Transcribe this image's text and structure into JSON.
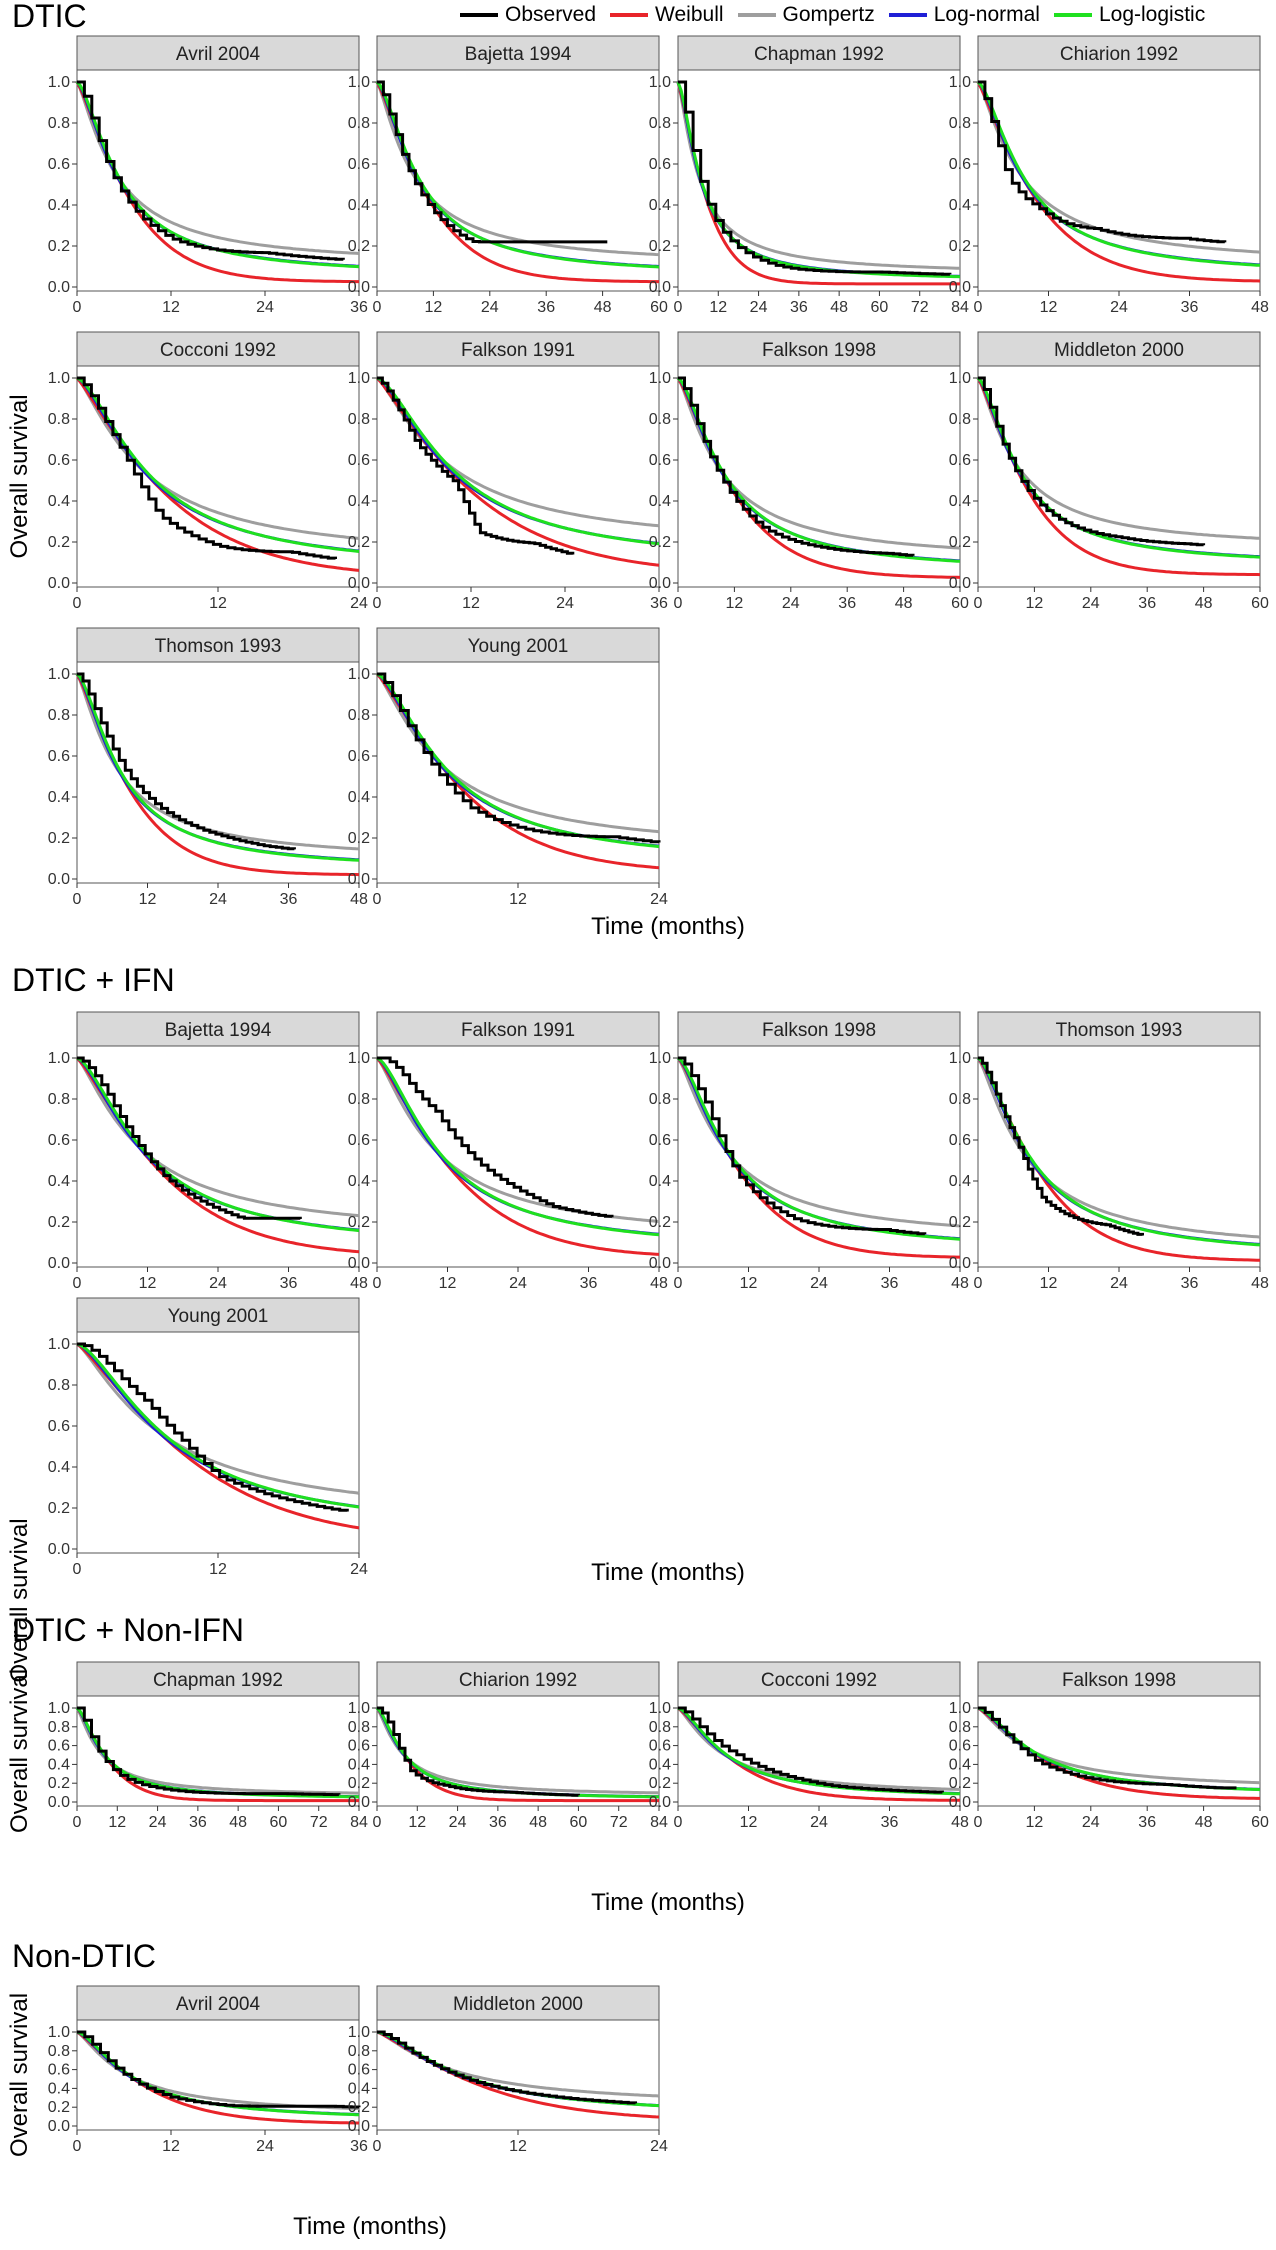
{
  "legend": [
    {
      "key": "observed",
      "label": "Observed",
      "color": "#000000"
    },
    {
      "key": "weibull",
      "label": "Weibull",
      "color": "#e8242a"
    },
    {
      "key": "gompertz",
      "label": "Gompertz",
      "color": "#9e9e9e"
    },
    {
      "key": "lognormal",
      "label": "Log-normal",
      "color": "#1f1fd6"
    },
    {
      "key": "loglogistic",
      "label": "Log-logistic",
      "color": "#1fe01f"
    }
  ],
  "labels": {
    "y": "Overall survival",
    "x": "Time (months)"
  },
  "chart_data": [
    {
      "section": "DTIC",
      "type": "line",
      "panels": [
        {
          "title": "Avril 2004",
          "xmax": 36,
          "xticks": [
            0,
            12,
            24,
            36
          ],
          "median": 5.5,
          "tail": 0.05,
          "dev": [
            [
              4,
              -0.05
            ],
            [
              12,
              -0.03
            ],
            [
              24,
              0.03
            ],
            [
              31,
              0.03
            ]
          ],
          "weib": 1.2,
          "gomp": 0.9,
          "obsEnd": 34,
          "obsFloor": 0.05
        },
        {
          "title": "Bajetta 1994",
          "xmax": 60,
          "xticks": [
            0,
            12,
            24,
            36,
            48,
            60
          ],
          "median": 9,
          "tail": 0.05,
          "dev": [
            [
              6,
              -0.06
            ],
            [
              20,
              -0.04
            ],
            [
              30,
              0.05
            ],
            [
              40,
              0.07
            ]
          ],
          "weib": 1.2,
          "gomp": 0.85,
          "obsEnd": 49,
          "obsFloor": 0.22
        },
        {
          "title": "Chapman 1992",
          "xmax": 84,
          "xticks": [
            0,
            12,
            24,
            36,
            48,
            60,
            72,
            84
          ],
          "median": 7,
          "tail": 0.03,
          "dev": [
            [
              10,
              -0.02
            ],
            [
              30,
              -0.02
            ],
            [
              60,
              0.01
            ]
          ],
          "weib": 1.2,
          "gomp": 0.9,
          "obsEnd": 81,
          "obsFloor": 0.03
        },
        {
          "title": "Chiarion 1992",
          "xmax": 48,
          "xticks": [
            0,
            12,
            24,
            36,
            48
          ],
          "median": 8,
          "tail": 0.05,
          "dev": [
            [
              5,
              -0.15
            ],
            [
              10,
              -0.05
            ],
            [
              20,
              0.05
            ],
            [
              35,
              0.1
            ]
          ],
          "weib": 1.15,
          "gomp": 0.9,
          "obsEnd": 42,
          "obsFloor": 0.12
        },
        {
          "title": "Cocconi 1992",
          "xmax": 24,
          "xticks": [
            0,
            12,
            24
          ],
          "median": 6.2,
          "tail": 0.05,
          "dev": [
            [
              4,
              -0.05
            ],
            [
              7,
              -0.15
            ],
            [
              12,
              -0.12
            ],
            [
              18,
              -0.05
            ]
          ],
          "weib": 1.15,
          "gomp": 0.9,
          "obsEnd": 22,
          "obsFloor": 0.04
        },
        {
          "title": "Falkson 1991",
          "xmax": 36,
          "xticks": [
            0,
            12,
            24,
            36
          ],
          "median": 10,
          "tail": 0.08,
          "dev": [
            [
              5,
              -0.08
            ],
            [
              10,
              -0.05
            ],
            [
              13,
              -0.2
            ],
            [
              20,
              -0.12
            ]
          ],
          "weib": 1.15,
          "gomp": 0.9,
          "obsEnd": 25,
          "obsFloor": 0.13
        },
        {
          "title": "Falkson 1998",
          "xmax": 60,
          "xticks": [
            0,
            12,
            24,
            36,
            48,
            60
          ],
          "median": 10,
          "tail": 0.05,
          "dev": [
            [
              6,
              -0.04
            ],
            [
              18,
              -0.05
            ],
            [
              30,
              -0.02
            ],
            [
              45,
              0.01
            ]
          ],
          "weib": 1.2,
          "gomp": 0.9,
          "obsEnd": 50,
          "obsFloor": 0.1
        },
        {
          "title": "Middleton 2000",
          "xmax": 60,
          "xticks": [
            0,
            12,
            24,
            36,
            48,
            60
          ],
          "median": 9,
          "tail": 0.08,
          "dev": [
            [
              5,
              -0.04
            ],
            [
              15,
              -0.02
            ],
            [
              30,
              0.02
            ],
            [
              45,
              0.04
            ]
          ],
          "weib": 1.2,
          "gomp": 0.9,
          "obsEnd": 48,
          "obsFloor": 0.16
        },
        {
          "title": "Thomson 1993",
          "xmax": 48,
          "xticks": [
            0,
            12,
            24,
            36,
            48
          ],
          "median": 7.5,
          "tail": 0.04,
          "dev": [
            [
              5,
              0.04
            ],
            [
              12,
              0.05
            ],
            [
              24,
              0.04
            ],
            [
              32,
              0.03
            ]
          ],
          "weib": 1.2,
          "gomp": 0.9,
          "obsEnd": 37,
          "obsFloor": 0.07
        },
        {
          "title": "Young 2001",
          "xmax": 24,
          "xticks": [
            0,
            12,
            24
          ],
          "median": 6,
          "tail": 0.06,
          "dev": [
            [
              3,
              -0.05
            ],
            [
              8,
              -0.08
            ],
            [
              14,
              -0.03
            ],
            [
              20,
              0.02
            ]
          ],
          "weib": 1.2,
          "gomp": 0.9,
          "obsEnd": 24,
          "obsFloor": 0.09
        }
      ]
    },
    {
      "section": "DTIC + IFN",
      "type": "line",
      "panels": [
        {
          "title": "Bajetta 1994",
          "xmax": 48,
          "xticks": [
            0,
            12,
            24,
            36,
            48
          ],
          "median": 12,
          "tail": 0.06,
          "dev": [
            [
              5,
              0.03
            ],
            [
              15,
              -0.03
            ],
            [
              28,
              -0.04
            ],
            [
              36,
              0.02
            ]
          ],
          "weib": 1.2,
          "gomp": 0.9,
          "obsEnd": 38,
          "obsFloor": 0.17
        },
        {
          "title": "Falkson 1991",
          "xmax": 48,
          "xticks": [
            0,
            12,
            24,
            36,
            48
          ],
          "median": 11,
          "tail": 0.05,
          "dev": [
            [
              4,
              0.1
            ],
            [
              10,
              0.18
            ],
            [
              18,
              0.12
            ],
            [
              30,
              0.06
            ]
          ],
          "weib": 1.2,
          "gomp": 0.9,
          "obsEnd": 40,
          "obsFloor": 0.13
        },
        {
          "title": "Falkson 1998",
          "xmax": 48,
          "xticks": [
            0,
            12,
            24,
            36,
            48
          ],
          "median": 9,
          "tail": 0.05,
          "dev": [
            [
              5,
              0.04
            ],
            [
              10,
              -0.05
            ],
            [
              20,
              -0.05
            ],
            [
              35,
              0.01
            ]
          ],
          "weib": 1.25,
          "gomp": 0.9,
          "obsEnd": 42,
          "obsFloor": 0.1
        },
        {
          "title": "Thomson 1993",
          "xmax": 48,
          "xticks": [
            0,
            12,
            24,
            36,
            48
          ],
          "median": 9,
          "tail": 0.02,
          "dev": [
            [
              7,
              -0.04
            ],
            [
              11,
              -0.12
            ],
            [
              16,
              -0.08
            ],
            [
              22,
              -0.03
            ]
          ],
          "weib": 1.25,
          "gomp": 0.9,
          "obsEnd": 28,
          "obsFloor": 0.04
        },
        {
          "title": "Young 2001",
          "xmax": 24,
          "xticks": [
            0,
            12,
            24
          ],
          "median": 8,
          "tail": 0.06,
          "dev": [
            [
              3,
              0.05
            ],
            [
              6,
              0.08
            ],
            [
              9,
              0.04
            ],
            [
              12,
              -0.03
            ]
          ],
          "weib": 1.2,
          "gomp": 0.9,
          "obsEnd": 23,
          "obsFloor": 0.1
        }
      ]
    },
    {
      "section": "DTIC + Non-IFN",
      "type": "line",
      "panels": [
        {
          "title": "Chapman 1992",
          "xmax": 84,
          "xticks": [
            0,
            12,
            24,
            36,
            48,
            60,
            72,
            84
          ],
          "median": 8,
          "tail": 0.03,
          "dev": [
            [
              6,
              -0.05
            ],
            [
              12,
              -0.06
            ],
            [
              24,
              -0.03
            ],
            [
              60,
              0.02
            ]
          ],
          "weib": 1.25,
          "gomp": 0.85,
          "obsEnd": 78,
          "obsFloor": 0.05
        },
        {
          "title": "Chiarion 1992",
          "xmax": 84,
          "xticks": [
            0,
            12,
            24,
            36,
            48,
            60,
            72,
            84
          ],
          "median": 8,
          "tail": 0.03,
          "dev": [
            [
              4,
              0.06
            ],
            [
              10,
              -0.1
            ],
            [
              20,
              -0.04
            ],
            [
              40,
              0.0
            ]
          ],
          "weib": 1.25,
          "gomp": 0.9,
          "obsEnd": 60,
          "obsFloor": 0.03
        },
        {
          "title": "Cocconi 1992",
          "xmax": 48,
          "xticks": [
            0,
            12,
            24,
            36,
            48
          ],
          "median": 8,
          "tail": 0.03,
          "dev": [
            [
              5,
              0.04
            ],
            [
              10,
              0.07
            ],
            [
              18,
              0.04
            ],
            [
              26,
              0.01
            ]
          ],
          "weib": 1.2,
          "gomp": 0.9,
          "obsEnd": 45,
          "obsFloor": 0.02
        },
        {
          "title": "Falkson 1998",
          "xmax": 60,
          "xticks": [
            0,
            12,
            24,
            36,
            48,
            60
          ],
          "median": 12,
          "tail": 0.06,
          "dev": [
            [
              6,
              -0.04
            ],
            [
              12,
              -0.08
            ],
            [
              24,
              -0.05
            ],
            [
              40,
              0.0
            ]
          ],
          "weib": 1.2,
          "gomp": 0.9,
          "obsEnd": 55,
          "obsFloor": 0.15
        }
      ]
    },
    {
      "section": "Non-DTIC",
      "type": "line",
      "panels": [
        {
          "title": "Avril 2004",
          "xmax": 36,
          "xticks": [
            0,
            12,
            24,
            36
          ],
          "median": 7,
          "tail": 0.05,
          "dev": [
            [
              5,
              -0.03
            ],
            [
              12,
              -0.03
            ],
            [
              20,
              0.01
            ],
            [
              30,
              0.08
            ]
          ],
          "weib": 1.2,
          "gomp": 0.9,
          "obsEnd": 36,
          "obsFloor": 0.14
        },
        {
          "title": "Middleton 2000",
          "xmax": 24,
          "xticks": [
            0,
            12,
            24
          ],
          "median": 7,
          "tail": 0.1,
          "dev": [
            [
              3,
              -0.03
            ],
            [
              8,
              -0.02
            ],
            [
              14,
              0.0
            ],
            [
              20,
              0.01
            ]
          ],
          "weib": 1.2,
          "gomp": 0.9,
          "obsEnd": 22,
          "obsFloor": 0.16
        }
      ]
    }
  ]
}
